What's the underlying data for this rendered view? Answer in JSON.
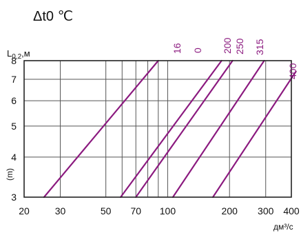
{
  "chart_data": {
    "type": "line",
    "title": "Δt0 ℃",
    "ylabel": "L",
    "ylabel_sub": "0,2",
    "ylabel_unit": ",м",
    "ylabel_side": "(m)",
    "xlabel": "дм³/с",
    "x_scale": "log",
    "y_scale": "log",
    "xlim": [
      20,
      400
    ],
    "ylim": [
      3,
      8
    ],
    "x_ticks": [
      20,
      30,
      50,
      60,
      70,
      80,
      90,
      100,
      200,
      300,
      400
    ],
    "x_tick_labels": [
      "20",
      "30",
      "50",
      "",
      "70",
      "",
      "",
      "100",
      "200",
      "300",
      "400"
    ],
    "y_ticks": [
      3,
      4,
      5,
      6,
      7,
      8
    ],
    "y_tick_labels": [
      "3",
      "4",
      "5",
      "6",
      "7",
      "8"
    ],
    "grid": true,
    "line_color": "#8b1a7f",
    "grid_color": "#555555",
    "series": [
      {
        "name": "16",
        "x": [
          25,
          90
        ],
        "y": [
          3,
          8
        ]
      },
      {
        "name": "0",
        "x": [
          59,
          183
        ],
        "y": [
          3,
          8
        ]
      },
      {
        "name": "200",
        "x": [
          70,
          207
        ],
        "y": [
          3,
          8
        ]
      },
      {
        "name": "250",
        "x": [
          106,
          295
        ],
        "y": [
          3,
          8
        ]
      },
      {
        "name": "315",
        "x": [
          166,
          421
        ],
        "y": [
          3,
          7.4
        ]
      },
      {
        "name": "400",
        "x": [],
        "y": []
      }
    ]
  }
}
